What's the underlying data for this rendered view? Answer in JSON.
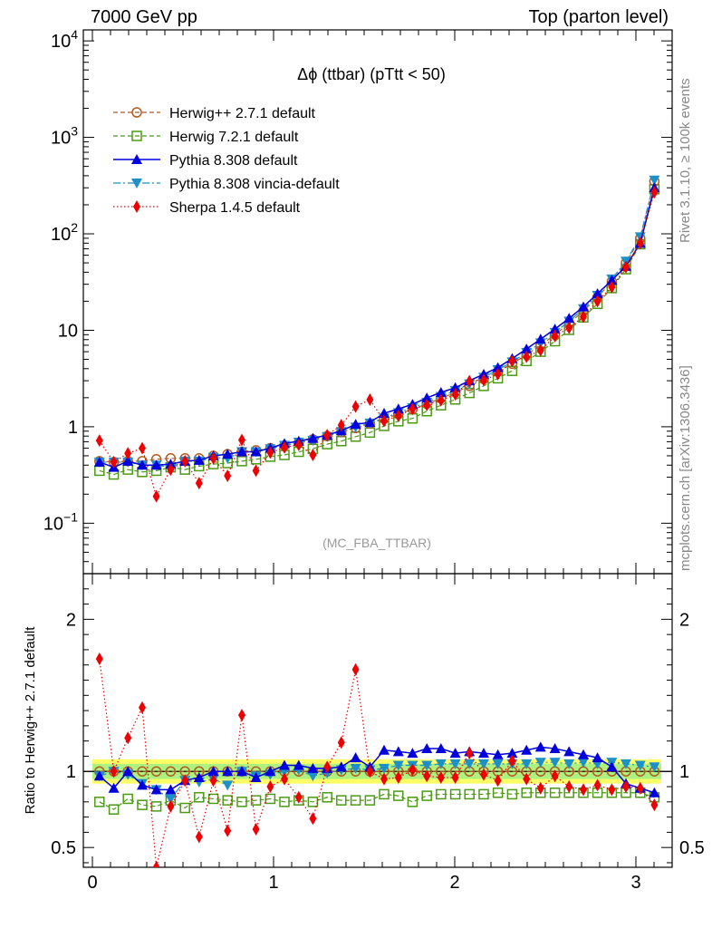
{
  "header": {
    "left": "7000 GeV pp",
    "right": "Top (parton level)"
  },
  "side_labels": {
    "rivet": "Rivet 3.1.10, ≥ 100k events",
    "mcplots": "mcplots.cern.ch [arXiv:1306.3436]"
  },
  "chart_data": {
    "type": "line",
    "title": "Δϕ (ttbar) (pTtt < 50)",
    "watermark": "(MC_FBA_TTBAR)",
    "xlim": [
      -0.05,
      3.2
    ],
    "x_ticks": [
      "0",
      "1",
      "2",
      "3"
    ],
    "main": {
      "yscale": "log",
      "ylim": [
        0.03,
        13000
      ],
      "y_ticks": [
        {
          "v": 10000,
          "base": "10",
          "exp": "4"
        },
        {
          "v": 1000,
          "base": "10",
          "exp": "3"
        },
        {
          "v": 100,
          "base": "10",
          "exp": "2"
        },
        {
          "v": 10,
          "base": "10",
          "exp": ""
        },
        {
          "v": 1,
          "base": "1",
          "exp": ""
        },
        {
          "v": 0.1,
          "base": "10",
          "exp": "−1"
        }
      ]
    },
    "ratio": {
      "ylabel": "Ratio to Herwig++ 2.7.1 default",
      "ylim": [
        0.37,
        2.3
      ],
      "y_ticks": [
        {
          "v": 0.5,
          "label": "0.5"
        },
        {
          "v": 1,
          "label": "1"
        },
        {
          "v": 2,
          "label": "2"
        }
      ]
    },
    "legend_position": "top-left",
    "x": [
      0.039,
      0.118,
      0.196,
      0.275,
      0.353,
      0.432,
      0.511,
      0.589,
      0.668,
      0.746,
      0.825,
      0.903,
      0.982,
      1.06,
      1.139,
      1.217,
      1.296,
      1.374,
      1.453,
      1.532,
      1.61,
      1.689,
      1.767,
      1.846,
      1.924,
      2.003,
      2.081,
      2.16,
      2.238,
      2.317,
      2.396,
      2.474,
      2.553,
      2.631,
      2.71,
      2.788,
      2.867,
      2.945,
      3.024,
      3.102
    ],
    "series": [
      {
        "name": "Herwig++ 2.7.1 default",
        "color": "#b35a1f",
        "marker": "circle-open",
        "line": "dashed",
        "values": [
          0.44,
          0.43,
          0.44,
          0.44,
          0.46,
          0.47,
          0.47,
          0.47,
          0.5,
          0.52,
          0.55,
          0.57,
          0.6,
          0.64,
          0.68,
          0.74,
          0.8,
          0.88,
          0.97,
          1.08,
          1.21,
          1.35,
          1.52,
          1.73,
          1.97,
          2.27,
          2.65,
          3.12,
          3.72,
          4.5,
          5.6,
          7.0,
          9.0,
          11.8,
          15.8,
          22,
          32,
          50,
          90,
          350
        ]
      },
      {
        "name": "Herwig 7.2.1 default",
        "color": "#4c9a16",
        "marker": "square-open",
        "line": "dashed",
        "values": [
          0.35,
          0.32,
          0.36,
          0.34,
          0.35,
          0.38,
          0.36,
          0.39,
          0.41,
          0.42,
          0.44,
          0.46,
          0.49,
          0.51,
          0.55,
          0.59,
          0.66,
          0.71,
          0.79,
          0.87,
          1.02,
          1.14,
          1.22,
          1.45,
          1.67,
          1.92,
          2.24,
          2.65,
          3.18,
          3.8,
          4.8,
          6.0,
          7.7,
          10.1,
          13.6,
          18.8,
          27.4,
          43,
          78,
          290
        ]
      },
      {
        "name": "Pythia 8.308 default",
        "color": "#0000dd",
        "marker": "triangle-up",
        "line": "solid",
        "values": [
          0.43,
          0.38,
          0.44,
          0.4,
          0.4,
          0.41,
          0.44,
          0.45,
          0.5,
          0.52,
          0.55,
          0.55,
          0.6,
          0.67,
          0.71,
          0.76,
          0.82,
          0.91,
          1.06,
          1.11,
          1.38,
          1.53,
          1.71,
          1.99,
          2.27,
          2.54,
          3.0,
          3.5,
          4.1,
          5.1,
          6.4,
          8.1,
          10.3,
          13.3,
          17.5,
          24,
          33,
          46,
          80,
          300
        ]
      },
      {
        "name": "Pythia 8.308 vincia-default",
        "color": "#1e90c8",
        "marker": "triangle-down",
        "line": "dashdot",
        "values": [
          0.43,
          0.43,
          0.43,
          0.4,
          0.4,
          0.38,
          0.44,
          0.44,
          0.48,
          0.47,
          0.55,
          0.55,
          0.59,
          0.64,
          0.69,
          0.72,
          0.79,
          0.89,
          0.99,
          1.09,
          1.23,
          1.4,
          1.57,
          1.79,
          2.06,
          2.37,
          2.78,
          3.25,
          3.9,
          4.7,
          5.9,
          7.4,
          9.5,
          12.4,
          16.7,
          23,
          34,
          52,
          93,
          360
        ]
      },
      {
        "name": "Sherpa 1.4.5 default",
        "color": "#ee0000",
        "marker": "diamond",
        "line": "dotted",
        "values": [
          0.72,
          0.43,
          0.53,
          0.6,
          0.19,
          0.36,
          0.44,
          0.26,
          0.47,
          0.31,
          0.73,
          0.35,
          0.54,
          0.61,
          0.65,
          0.51,
          0.82,
          1.04,
          1.62,
          1.91,
          1.15,
          1.3,
          1.53,
          1.68,
          1.88,
          2.17,
          2.97,
          3.05,
          3.5,
          4.8,
          5.3,
          6.2,
          8.7,
          10.6,
          13.8,
          20,
          28,
          45,
          80,
          270
        ]
      }
    ],
    "ratio_values": {
      "Herwig++ 2.7.1 default": [
        1.0,
        1.0,
        1.0,
        1.0,
        1.0,
        1.0,
        1.0,
        1.0,
        1.0,
        1.0,
        1.0,
        1.0,
        1.0,
        1.0,
        1.0,
        1.0,
        1.0,
        1.0,
        1.0,
        1.0,
        1.0,
        1.0,
        1.0,
        1.0,
        1.0,
        1.0,
        1.0,
        1.0,
        1.0,
        1.0,
        1.0,
        1.0,
        1.0,
        1.0,
        1.0,
        1.0,
        1.0,
        1.0,
        1.0,
        1.0
      ],
      "Herwig 7.2.1 default": [
        0.8,
        0.75,
        0.82,
        0.78,
        0.77,
        0.81,
        0.76,
        0.83,
        0.82,
        0.81,
        0.8,
        0.81,
        0.82,
        0.8,
        0.81,
        0.8,
        0.83,
        0.81,
        0.81,
        0.81,
        0.85,
        0.84,
        0.8,
        0.84,
        0.85,
        0.85,
        0.85,
        0.85,
        0.86,
        0.85,
        0.86,
        0.86,
        0.86,
        0.86,
        0.86,
        0.86,
        0.86,
        0.86,
        0.86,
        0.83
      ],
      "Pythia 8.308 default": [
        0.97,
        0.89,
        1.0,
        0.91,
        0.88,
        0.88,
        0.94,
        0.96,
        1.0,
        1.0,
        1.0,
        0.96,
        1.0,
        1.04,
        1.04,
        1.02,
        1.02,
        1.03,
        1.09,
        1.03,
        1.14,
        1.13,
        1.12,
        1.15,
        1.15,
        1.12,
        1.13,
        1.12,
        1.11,
        1.12,
        1.14,
        1.16,
        1.15,
        1.13,
        1.11,
        1.09,
        1.03,
        0.92,
        0.89,
        0.86
      ],
      "Pythia 8.308 vincia-default": [
        0.97,
        1.0,
        0.98,
        0.92,
        0.88,
        0.82,
        0.94,
        0.93,
        0.95,
        0.91,
        1.0,
        0.97,
        0.98,
        1.0,
        1.01,
        0.97,
        0.99,
        1.01,
        1.02,
        1.01,
        1.02,
        1.04,
        1.04,
        1.04,
        1.05,
        1.05,
        1.05,
        1.05,
        1.05,
        1.05,
        1.05,
        1.06,
        1.06,
        1.05,
        1.06,
        1.05,
        1.06,
        1.05,
        1.04,
        1.03
      ],
      "Sherpa 1.4.5 default": [
        1.74,
        1.0,
        1.22,
        1.42,
        0.37,
        0.77,
        0.94,
        0.57,
        0.94,
        0.61,
        1.37,
        0.62,
        0.9,
        0.95,
        0.83,
        0.69,
        1.03,
        1.19,
        1.67,
        1.0,
        0.95,
        0.96,
        1.01,
        0.97,
        0.96,
        0.96,
        1.12,
        0.98,
        0.94,
        1.07,
        0.95,
        0.89,
        0.97,
        0.9,
        0.88,
        0.91,
        0.88,
        0.9,
        0.89,
        0.78
      ]
    },
    "reference_band": {
      "inner": [
        0.95,
        1.05
      ],
      "outer": [
        0.92,
        1.08
      ]
    }
  }
}
